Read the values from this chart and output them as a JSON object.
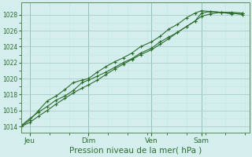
{
  "title": "",
  "xlabel": "Pression niveau de la mer( hPa )",
  "ylabel": "",
  "bg_color": "#d4eeee",
  "grid_color_major": "#a8cccc",
  "grid_color_minor": "#c4e4e4",
  "line_color": "#2d6e2d",
  "tick_label_color": "#2d6e2d",
  "axis_label_color": "#2d6e2d",
  "vline_color": "#5a8a6a",
  "ylim": [
    1013.2,
    1029.5
  ],
  "yticks": [
    1014,
    1016,
    1018,
    1020,
    1022,
    1024,
    1026,
    1028
  ],
  "xlim": [
    0.0,
    1.05
  ],
  "day_positions": [
    0.04,
    0.31,
    0.6,
    0.83
  ],
  "day_labels": [
    "Jeu",
    "Dim",
    "Ven",
    "Sam"
  ],
  "line1_x": [
    0.0,
    0.04,
    0.08,
    0.12,
    0.16,
    0.2,
    0.24,
    0.28,
    0.31,
    0.35,
    0.39,
    0.43,
    0.47,
    0.51,
    0.55,
    0.6,
    0.64,
    0.68,
    0.72,
    0.76,
    0.8,
    0.83,
    0.87,
    0.92,
    0.97,
    1.02
  ],
  "line1_y": [
    1014.1,
    1015.0,
    1015.8,
    1016.5,
    1017.3,
    1017.8,
    1018.5,
    1019.5,
    1019.8,
    1020.3,
    1020.8,
    1021.4,
    1022.0,
    1022.5,
    1023.2,
    1023.8,
    1024.6,
    1025.2,
    1025.8,
    1026.5,
    1027.2,
    1028.2,
    1028.4,
    1028.3,
    1028.1,
    1028.2
  ],
  "line2_x": [
    0.0,
    0.04,
    0.08,
    0.12,
    0.16,
    0.2,
    0.24,
    0.28,
    0.31,
    0.35,
    0.39,
    0.43,
    0.47,
    0.51,
    0.55,
    0.6,
    0.64,
    0.68,
    0.72,
    0.76,
    0.8,
    0.83,
    0.87,
    0.92,
    0.97,
    1.02
  ],
  "line2_y": [
    1014.0,
    1014.5,
    1015.3,
    1016.0,
    1016.8,
    1017.5,
    1018.2,
    1018.8,
    1019.2,
    1019.8,
    1020.5,
    1021.2,
    1021.8,
    1022.4,
    1023.0,
    1023.6,
    1024.3,
    1025.0,
    1025.8,
    1026.5,
    1027.2,
    1027.8,
    1028.1,
    1028.3,
    1028.2,
    1028.0
  ],
  "line3_x": [
    0.0,
    0.04,
    0.08,
    0.12,
    0.16,
    0.2,
    0.24,
    0.28,
    0.31,
    0.35,
    0.39,
    0.43,
    0.47,
    0.51,
    0.55,
    0.6,
    0.64,
    0.68,
    0.72,
    0.76,
    0.8,
    0.83,
    0.87,
    0.92,
    0.97,
    1.02
  ],
  "line3_y": [
    1014.0,
    1014.8,
    1016.0,
    1017.2,
    1017.8,
    1018.6,
    1019.5,
    1019.8,
    1020.0,
    1020.8,
    1021.5,
    1022.1,
    1022.6,
    1023.2,
    1024.0,
    1024.6,
    1025.3,
    1026.2,
    1026.8,
    1027.6,
    1028.2,
    1028.5,
    1028.4,
    1028.3,
    1028.3,
    1028.2
  ]
}
